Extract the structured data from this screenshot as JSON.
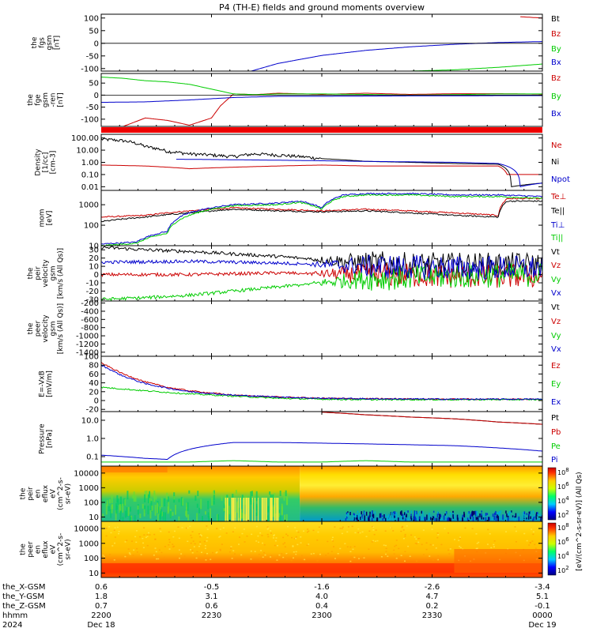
{
  "chart_data": {
    "type": "line",
    "title": "P4 (TH-E) fields and ground moments overview",
    "panels": [
      {
        "id": "fgs",
        "ylabel_lines": [
          "the",
          "fgs",
          "gsm",
          "[nT]"
        ],
        "yticks": [
          "100",
          "50",
          "0",
          "-50",
          "-100"
        ],
        "ylim": [
          -110,
          115
        ],
        "series": [
          {
            "name": "Bt",
            "color": "#000000",
            "x": [
              0.0
            ],
            "values": [
              115
            ]
          },
          {
            "name": "Bz",
            "color": "#cc0000",
            "x": [
              0.95,
              1.0
            ],
            "values": [
              105,
              100
            ]
          },
          {
            "name": "By",
            "color": "#00cc00",
            "x": [
              0.7,
              0.8,
              0.9,
              1.0
            ],
            "values": [
              -110,
              -105,
              -95,
              -82
            ]
          },
          {
            "name": "Bx",
            "color": "#0000cc",
            "x": [
              0.34,
              0.4,
              0.5,
              0.6,
              0.7,
              0.8,
              0.9,
              1.0
            ],
            "values": [
              -110,
              -80,
              -48,
              -28,
              -14,
              -4,
              3,
              7
            ]
          }
        ]
      },
      {
        "id": "fge",
        "ylabel_lines": [
          "the",
          "fge",
          "gsm",
          "-ren",
          "[nT]"
        ],
        "yticks": [
          "50",
          "0",
          "-50",
          "-100"
        ],
        "ylim": [
          -130,
          90
        ],
        "series": [
          {
            "name": "Bz",
            "color": "#cc0000",
            "x": [
              0.0,
              0.05,
              0.1,
              0.15,
              0.2,
              0.25,
              0.27,
              0.3,
              0.35,
              0.4,
              0.5,
              0.6,
              0.7,
              0.8,
              0.9,
              1.0
            ],
            "values": [
              -130,
              -130,
              -95,
              -105,
              -125,
              -95,
              -45,
              5,
              2,
              8,
              3,
              8,
              3,
              6,
              6,
              4
            ]
          },
          {
            "name": "By",
            "color": "#00cc00",
            "x": [
              0.0,
              0.05,
              0.1,
              0.15,
              0.2,
              0.25,
              0.3,
              0.35,
              0.4,
              0.5,
              0.6,
              0.7,
              0.8,
              0.9,
              1.0
            ],
            "values": [
              75,
              70,
              60,
              55,
              45,
              25,
              5,
              2,
              5,
              5,
              3,
              0,
              2,
              5,
              5
            ]
          },
          {
            "name": "Bx",
            "color": "#0000cc",
            "x": [
              0.0,
              0.1,
              0.2,
              0.3,
              0.4,
              0.5,
              0.6,
              0.7,
              0.8,
              0.9,
              1.0
            ],
            "values": [
              -30,
              -28,
              -20,
              -10,
              -5,
              -5,
              -4,
              -3,
              -3,
              -2,
              -2
            ]
          }
        ]
      },
      {
        "id": "density",
        "ylabel_lines": [
          "Density",
          "[1/cc]",
          "[cm-3]"
        ],
        "yticks": [
          "100.00",
          "10.00",
          "1.00",
          "0.10",
          "0.01"
        ],
        "log": true,
        "ylim": [
          0.005,
          200
        ],
        "series": [
          {
            "name": "Ne",
            "color": "#cc0000",
            "x": [
              0.0,
              0.1,
              0.2,
              0.3,
              0.4,
              0.5,
              0.6,
              0.7,
              0.8,
              0.9,
              0.92,
              1.0
            ],
            "values": [
              0.6,
              0.5,
              0.3,
              0.4,
              0.5,
              0.6,
              0.5,
              0.5,
              0.5,
              0.5,
              0.1,
              0.1
            ]
          },
          {
            "name": "Ni",
            "color": "#000000",
            "x": [
              0.0,
              0.05,
              0.1,
              0.15,
              0.2,
              0.3,
              0.35,
              0.4,
              0.45,
              0.5,
              0.6,
              0.7,
              0.8,
              0.9,
              0.93,
              1.0
            ],
            "values": [
              80,
              60,
              20,
              8,
              5,
              3,
              5,
              4,
              3,
              2,
              1.2,
              1.0,
              0.8,
              0.7,
              0.01,
              0.02
            ]
          },
          {
            "name": "Npot",
            "color": "#0000cc",
            "x": [
              0.17,
              0.4,
              0.6,
              0.8,
              0.9,
              0.95,
              1.0
            ],
            "values": [
              1.8,
              1.5,
              1.2,
              1.0,
              0.8,
              0.01,
              0.02
            ]
          }
        ]
      },
      {
        "id": "temperature",
        "ylabel_lines": [
          "mom",
          "[eV]"
        ],
        "yticks": [
          "1000",
          "100",
          "10"
        ],
        "log": true,
        "ylim": [
          10,
          5000
        ],
        "series": [
          {
            "name": "Te⊥",
            "color": "#cc0000",
            "x": [
              0.0,
              0.1,
              0.2,
              0.3,
              0.4,
              0.5,
              0.6,
              0.7,
              0.8,
              0.9,
              0.92,
              1.0
            ],
            "values": [
              250,
              300,
              500,
              700,
              600,
              500,
              600,
              500,
              400,
              300,
              2000,
              2000
            ]
          },
          {
            "name": "Te||",
            "color": "#000000",
            "x": [
              0.0,
              0.1,
              0.2,
              0.3,
              0.4,
              0.5,
              0.6,
              0.7,
              0.8,
              0.9,
              0.92,
              1.0
            ],
            "values": [
              150,
              250,
              400,
              600,
              500,
              450,
              500,
              400,
              300,
              250,
              1500,
              1500
            ]
          },
          {
            "name": "Ti⊥",
            "color": "#0000cc",
            "x": [
              0.0,
              0.08,
              0.15,
              0.2,
              0.3,
              0.4,
              0.45,
              0.5,
              0.55,
              0.6,
              0.7,
              0.8,
              0.9,
              1.0
            ],
            "values": [
              12,
              15,
              50,
              400,
              1000,
              1200,
              1500,
              700,
              3000,
              3500,
              3500,
              3000,
              3000,
              2500
            ]
          },
          {
            "name": "Ti||",
            "color": "#00cc00",
            "x": [
              0.0,
              0.08,
              0.15,
              0.2,
              0.3,
              0.4,
              0.45,
              0.5,
              0.55,
              0.6,
              0.7,
              0.8,
              0.9,
              1.0
            ],
            "values": [
              10,
              13,
              40,
              300,
              900,
              1000,
              1300,
              600,
              2500,
              3000,
              3000,
              2500,
              2500,
              2000
            ]
          }
        ]
      },
      {
        "id": "peir",
        "ylabel_lines": [
          "the",
          "peir",
          "velocity",
          "gsm",
          "[km/s (All Qs)]"
        ],
        "yticks": [
          "30",
          "20",
          "10",
          "0",
          "-10",
          "-20",
          "-30"
        ],
        "ylim": [
          -32,
          35
        ],
        "noisy_from": 0.45,
        "series": [
          {
            "name": "Vt",
            "color": "#000000",
            "x": [
              0.0,
              0.1,
              0.2,
              0.3,
              0.4,
              0.5,
              0.6,
              0.7,
              0.8,
              0.9,
              1.0
            ],
            "values": [
              33,
              30,
              28,
              25,
              22,
              18,
              14,
              12,
              12,
              12,
              12
            ]
          },
          {
            "name": "Vz",
            "color": "#cc0000",
            "x": [
              0.0,
              0.2,
              0.4,
              0.6,
              0.8,
              1.0
            ],
            "values": [
              0,
              0,
              2,
              0,
              -2,
              -2
            ]
          },
          {
            "name": "Vy",
            "color": "#00cc00",
            "x": [
              0.0,
              0.1,
              0.2,
              0.3,
              0.4,
              0.5,
              0.6,
              0.8,
              1.0
            ],
            "values": [
              -30,
              -28,
              -25,
              -20,
              -15,
              -10,
              -5,
              -2,
              0
            ]
          },
          {
            "name": "Vx",
            "color": "#0000cc",
            "x": [
              0.0,
              0.2,
              0.4,
              0.6,
              0.8,
              1.0
            ],
            "values": [
              15,
              16,
              14,
              10,
              8,
              8
            ]
          }
        ]
      },
      {
        "id": "peer",
        "ylabel_lines": [
          "the",
          "peer",
          "velocity",
          "gsm",
          "[km/s (All Qs)]"
        ],
        "yticks": [
          "-200",
          "-400",
          "-600",
          "-800",
          "-1000",
          "-1200",
          "-1400"
        ],
        "ylim": [
          -1500,
          -150
        ],
        "series": [
          {
            "name": "Vt",
            "color": "#000000",
            "x": [],
            "values": []
          },
          {
            "name": "Vz",
            "color": "#cc0000",
            "x": [],
            "values": []
          },
          {
            "name": "Vy",
            "color": "#00cc00",
            "x": [],
            "values": []
          },
          {
            "name": "Vx",
            "color": "#0000cc",
            "x": [],
            "values": []
          }
        ]
      },
      {
        "id": "efield",
        "ylabel_lines": [
          "E=-VxB",
          "[mV/m]"
        ],
        "yticks": [
          "100",
          "80",
          "60",
          "40",
          "20",
          "0",
          "-20"
        ],
        "ylim": [
          -25,
          100
        ],
        "series": [
          {
            "name": "Ez",
            "color": "#cc0000",
            "x": [
              0.0,
              0.05,
              0.1,
              0.15,
              0.2,
              0.3,
              0.4,
              0.5,
              0.6,
              0.8,
              1.0
            ],
            "values": [
              85,
              60,
              42,
              30,
              22,
              12,
              8,
              5,
              4,
              3,
              3
            ]
          },
          {
            "name": "Ey",
            "color": "#00cc00",
            "x": [
              0.0,
              0.1,
              0.2,
              0.3,
              0.4,
              0.5,
              0.6,
              0.8,
              1.0
            ],
            "values": [
              30,
              22,
              15,
              10,
              5,
              3,
              2,
              2,
              2
            ]
          },
          {
            "name": "Ex",
            "color": "#0000cc",
            "x": [
              0.0,
              0.05,
              0.1,
              0.15,
              0.2,
              0.3,
              0.4,
              0.5,
              0.6,
              0.8,
              1.0
            ],
            "values": [
              80,
              55,
              38,
              28,
              20,
              12,
              8,
              5,
              4,
              3,
              3
            ]
          }
        ]
      },
      {
        "id": "pressure",
        "ylabel_lines": [
          "Pressure",
          "[nPa]"
        ],
        "yticks": [
          "10.0",
          "1.0",
          "0.1"
        ],
        "log": true,
        "ylim": [
          0.03,
          30
        ],
        "series": [
          {
            "name": "Pt",
            "color": "#000000",
            "x": [
              0.5,
              0.6,
              0.7,
              0.8,
              0.9,
              1.0
            ],
            "values": [
              28,
              20,
              15,
              12,
              8,
              6
            ]
          },
          {
            "name": "Pb",
            "color": "#cc0000",
            "x": [
              0.5,
              0.6,
              0.7,
              0.8,
              0.9,
              1.0
            ],
            "values": [
              28,
              20,
              15,
              12,
              8,
              6
            ]
          },
          {
            "name": "Pe",
            "color": "#00cc00",
            "x": [
              0.0,
              0.1,
              0.2,
              0.3,
              0.4,
              0.5,
              0.6,
              0.7,
              0.8,
              0.9,
              1.0
            ],
            "values": [
              0.05,
              0.05,
              0.05,
              0.06,
              0.05,
              0.05,
              0.06,
              0.05,
              0.05,
              0.05,
              0.05
            ]
          },
          {
            "name": "Pi",
            "color": "#0000cc",
            "x": [
              0.0,
              0.05,
              0.1,
              0.15,
              0.2,
              0.3,
              0.4,
              0.5,
              0.6,
              0.7,
              0.8,
              0.9,
              1.0
            ],
            "values": [
              0.12,
              0.1,
              0.08,
              0.07,
              0.25,
              0.6,
              0.6,
              0.55,
              0.5,
              0.45,
              0.4,
              0.3,
              0.2
            ]
          }
        ]
      },
      {
        "id": "peir_spec",
        "type": "heatmap",
        "ylabel_lines": [
          "the",
          "peir",
          "en",
          "eflux",
          "eV",
          "(cm^2-s-",
          "sr-eV)"
        ],
        "yticks": [
          "10000",
          "1000",
          "100",
          "10"
        ],
        "log": true,
        "ylim": [
          5,
          30000
        ]
      },
      {
        "id": "peer_spec",
        "type": "heatmap",
        "ylabel_lines": [
          "the",
          "peer",
          "en",
          "eflux",
          "eV",
          "(cm^2-s-",
          "sr-eV)"
        ],
        "yticks": [
          "10000",
          "1000",
          "100",
          "10"
        ],
        "log": true,
        "ylim": [
          5,
          30000
        ]
      }
    ],
    "colorbar": {
      "label": "[eV/(cm^2-s-sr-eV)] (All Qs)",
      "ticks": [
        "10^8",
        "10^6",
        "10^4",
        "10^2"
      ]
    },
    "xaxis": {
      "rows": [
        {
          "label": "the_X-GSM",
          "values": [
            "0.6",
            "-0.5",
            "-1.6",
            "-2.6",
            "-3.4"
          ]
        },
        {
          "label": "the_Y-GSM",
          "values": [
            "1.8",
            "3.1",
            "4.0",
            "4.7",
            "5.1"
          ]
        },
        {
          "label": "the_Z-GSM",
          "values": [
            "0.7",
            "0.6",
            "0.4",
            "0.2",
            "-0.1"
          ]
        },
        {
          "label": "hhmm",
          "values": [
            "2200",
            "2230",
            "2300",
            "2330",
            "0000"
          ]
        },
        {
          "label": "2024",
          "values": [
            "Dec 18",
            "",
            "",
            "",
            "Dec 19"
          ]
        }
      ],
      "tick_positions": [
        0,
        0.25,
        0.5,
        0.75,
        1.0
      ]
    }
  }
}
